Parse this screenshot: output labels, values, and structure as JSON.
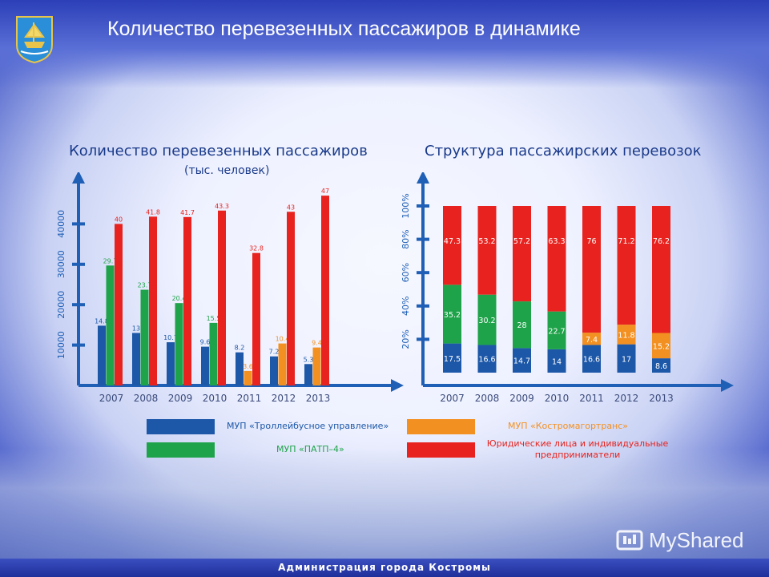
{
  "header": {
    "title": "Количество перевезенных пассажиров в динамике"
  },
  "footer": {
    "text": "Администрация города Костромы"
  },
  "watermark": {
    "text": "MyShared"
  },
  "colors": {
    "blue": "#1c57a8",
    "green": "#1fa34a",
    "orange": "#f39022",
    "red": "#e8231f",
    "axis": "#1f5fb5",
    "title": "#1a3a8a"
  },
  "legend": [
    {
      "label": "МУП «Троллейбусное управление»",
      "color": "#1c57a8"
    },
    {
      "label": "МУП «Костромагортранс»",
      "color": "#f39022"
    },
    {
      "label": "МУП «ПАТП–4»",
      "color": "#1fa34a"
    },
    {
      "label": "Юридические лица и индивидуальные предприниматели",
      "color": "#e8231f"
    }
  ],
  "chart_data": [
    {
      "type": "bar",
      "title": "Количество перевезенных пассажиров",
      "subtitle": "(тыс. человек)",
      "categories": [
        "2007",
        "2008",
        "2009",
        "2010",
        "2011",
        "2012",
        "2013"
      ],
      "yticks": [
        "10000",
        "20000",
        "30000",
        "40000"
      ],
      "ylim": [
        0,
        50
      ],
      "series": [
        {
          "name": "МУП «Троллейбусное управление»",
          "color": "#1c57a8",
          "values": [
            14.8,
            13,
            10.7,
            9.6,
            8.2,
            7.2,
            5.3
          ],
          "labels": [
            "14.8",
            "13",
            "10.7",
            "9.6",
            "8.2",
            "7.2",
            "5.3"
          ]
        },
        {
          "name": "МУП «ПАТП–4»",
          "color": "#1fa34a",
          "values": [
            29.7,
            23.7,
            20.4,
            15.5,
            null,
            null,
            null
          ],
          "labels": [
            "29.7",
            "23.7",
            "20.4",
            "15.5",
            "",
            "",
            ""
          ]
        },
        {
          "name": "МУП «Костромагортранс»",
          "color": "#f39022",
          "values": [
            null,
            null,
            null,
            null,
            3.6,
            10.4,
            9.4
          ],
          "labels": [
            "",
            "",
            "",
            "",
            "3.6",
            "10.4",
            "9.4"
          ]
        },
        {
          "name": "Юридические лица и индивидуальные предприниматели",
          "color": "#e8231f",
          "values": [
            40,
            41.8,
            41.7,
            43.3,
            32.8,
            43,
            47
          ],
          "labels": [
            "40",
            "41.8",
            "41.7",
            "43.3",
            "32.8",
            "43",
            "47"
          ]
        }
      ]
    },
    {
      "type": "bar",
      "stacked": true,
      "title": "Структура пассажирских перевозок",
      "categories": [
        "2007",
        "2008",
        "2009",
        "2010",
        "2011",
        "2012",
        "2013"
      ],
      "yticks": [
        "20%",
        "40%",
        "60%",
        "80%",
        "100%"
      ],
      "ylim": [
        0,
        100
      ],
      "series": [
        {
          "name": "МУП «Троллейбусное управление»",
          "color": "#1c57a8",
          "values": [
            17.5,
            16.6,
            14.7,
            14,
            16.6,
            17,
            8.6
          ],
          "labels": [
            "17.5",
            "16.6",
            "14.7",
            "14",
            "16.6",
            "17",
            "8.6"
          ]
        },
        {
          "name": "МУП «ПАТП–4»",
          "color": "#1fa34a",
          "values": [
            35.2,
            30.2,
            28,
            22.7,
            0,
            0,
            0
          ],
          "labels": [
            "35.2",
            "30.2",
            "28",
            "22.7",
            "",
            "",
            ""
          ]
        },
        {
          "name": "МУП «Костромагортранс»",
          "color": "#f39022",
          "values": [
            0,
            0,
            0,
            0,
            7.4,
            11.8,
            15.2
          ],
          "labels": [
            "",
            "",
            "",
            "",
            "7.4",
            "11.8",
            "15.2"
          ]
        },
        {
          "name": "Юридические лица и индивидуальные предприниматели",
          "color": "#e8231f",
          "values": [
            47.3,
            53.2,
            57.2,
            63.3,
            76,
            71.2,
            76.2
          ],
          "labels": [
            "47.3",
            "53.2",
            "57.2",
            "63.3",
            "76",
            "71.2",
            "76.2"
          ]
        }
      ]
    }
  ]
}
